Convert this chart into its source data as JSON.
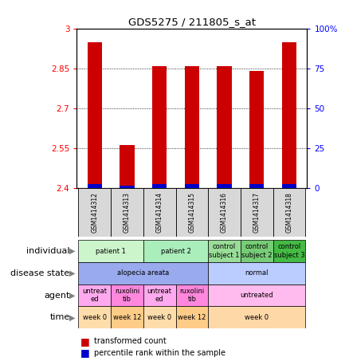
{
  "title": "GDS5275 / 211805_s_at",
  "samples": [
    "GSM1414312",
    "GSM1414313",
    "GSM1414314",
    "GSM1414315",
    "GSM1414316",
    "GSM1414317",
    "GSM1414318"
  ],
  "red_values": [
    2.95,
    2.56,
    2.86,
    2.86,
    2.86,
    2.84,
    2.95
  ],
  "blue_values": [
    2.415,
    2.408,
    2.415,
    2.415,
    2.415,
    2.415,
    2.415
  ],
  "ylim_left": [
    2.4,
    3.0
  ],
  "yticks_left": [
    2.4,
    2.55,
    2.7,
    2.85,
    3.0
  ],
  "yticks_right": [
    0,
    25,
    50,
    75,
    100
  ],
  "ytick_labels_left": [
    "2.4",
    "2.55",
    "2.7",
    "2.85",
    "3"
  ],
  "ytick_labels_right": [
    "0",
    "25",
    "50",
    "75",
    "100%"
  ],
  "metadata_rows": [
    {
      "label": "individual",
      "groups": [
        {
          "text": "patient 1",
          "cols": [
            0,
            1
          ],
          "color": "#ccf5cc"
        },
        {
          "text": "patient 2",
          "cols": [
            2,
            3
          ],
          "color": "#aaeebb"
        },
        {
          "text": "control\nsubject 1",
          "cols": [
            4
          ],
          "color": "#99dd99"
        },
        {
          "text": "control\nsubject 2",
          "cols": [
            5
          ],
          "color": "#77cc77"
        },
        {
          "text": "control\nsubject 3",
          "cols": [
            6
          ],
          "color": "#44bb44"
        }
      ]
    },
    {
      "label": "disease state",
      "groups": [
        {
          "text": "alopecia areata",
          "cols": [
            0,
            1,
            2,
            3
          ],
          "color": "#99aaee"
        },
        {
          "text": "normal",
          "cols": [
            4,
            5,
            6
          ],
          "color": "#bbccff"
        }
      ]
    },
    {
      "label": "agent",
      "groups": [
        {
          "text": "untreat\ned",
          "cols": [
            0
          ],
          "color": "#ffaaee"
        },
        {
          "text": "ruxolini\ntib",
          "cols": [
            1
          ],
          "color": "#ff88dd"
        },
        {
          "text": "untreat\ned",
          "cols": [
            2
          ],
          "color": "#ffaaee"
        },
        {
          "text": "ruxolini\ntib",
          "cols": [
            3
          ],
          "color": "#ff88dd"
        },
        {
          "text": "untreated",
          "cols": [
            4,
            5,
            6
          ],
          "color": "#ffbbee"
        }
      ]
    },
    {
      "label": "time",
      "groups": [
        {
          "text": "week 0",
          "cols": [
            0
          ],
          "color": "#ffddaa"
        },
        {
          "text": "week 12",
          "cols": [
            1
          ],
          "color": "#ffcc88"
        },
        {
          "text": "week 0",
          "cols": [
            2
          ],
          "color": "#ffddaa"
        },
        {
          "text": "week 12",
          "cols": [
            3
          ],
          "color": "#ffcc88"
        },
        {
          "text": "week 0",
          "cols": [
            4,
            5,
            6
          ],
          "color": "#ffd8a8"
        }
      ]
    }
  ]
}
